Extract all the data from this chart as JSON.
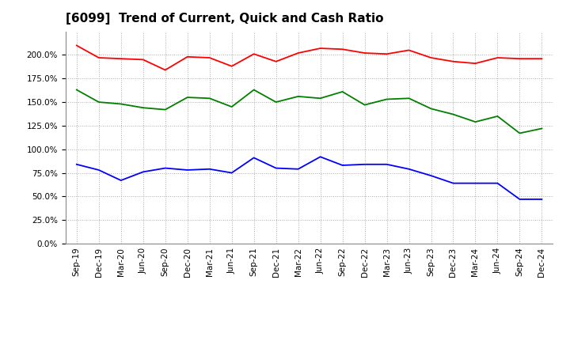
{
  "title": "[6099]  Trend of Current, Quick and Cash Ratio",
  "x_labels": [
    "Sep-19",
    "Dec-19",
    "Mar-20",
    "Jun-20",
    "Sep-20",
    "Dec-20",
    "Mar-21",
    "Jun-21",
    "Sep-21",
    "Dec-21",
    "Mar-22",
    "Jun-22",
    "Sep-22",
    "Dec-22",
    "Mar-23",
    "Jun-23",
    "Sep-23",
    "Dec-23",
    "Mar-24",
    "Jun-24",
    "Sep-24",
    "Dec-24"
  ],
  "current_ratio": [
    2.1,
    1.97,
    1.96,
    1.95,
    1.84,
    1.98,
    1.97,
    1.88,
    2.01,
    1.93,
    2.02,
    2.07,
    2.06,
    2.02,
    2.01,
    2.05,
    1.97,
    1.93,
    1.91,
    1.97,
    1.96,
    1.96
  ],
  "quick_ratio": [
    1.63,
    1.5,
    1.48,
    1.44,
    1.42,
    1.55,
    1.54,
    1.45,
    1.63,
    1.5,
    1.56,
    1.54,
    1.61,
    1.47,
    1.53,
    1.54,
    1.43,
    1.37,
    1.29,
    1.35,
    1.17,
    1.22
  ],
  "cash_ratio": [
    0.84,
    0.78,
    0.67,
    0.76,
    0.8,
    0.78,
    0.79,
    0.75,
    0.91,
    0.8,
    0.79,
    0.92,
    0.83,
    0.84,
    0.84,
    0.79,
    0.72,
    0.64,
    0.64,
    0.64,
    0.47,
    0.47
  ],
  "current_color": "#ff0000",
  "quick_color": "#008000",
  "cash_color": "#0000ff",
  "background_color": "#ffffff",
  "grid_color": "#aaaaaa",
  "ylim": [
    0.0,
    2.25
  ],
  "yticks": [
    0.0,
    0.25,
    0.5,
    0.75,
    1.0,
    1.25,
    1.5,
    1.75,
    2.0
  ],
  "title_fontsize": 11,
  "legend_fontsize": 9,
  "tick_fontsize": 7.5
}
